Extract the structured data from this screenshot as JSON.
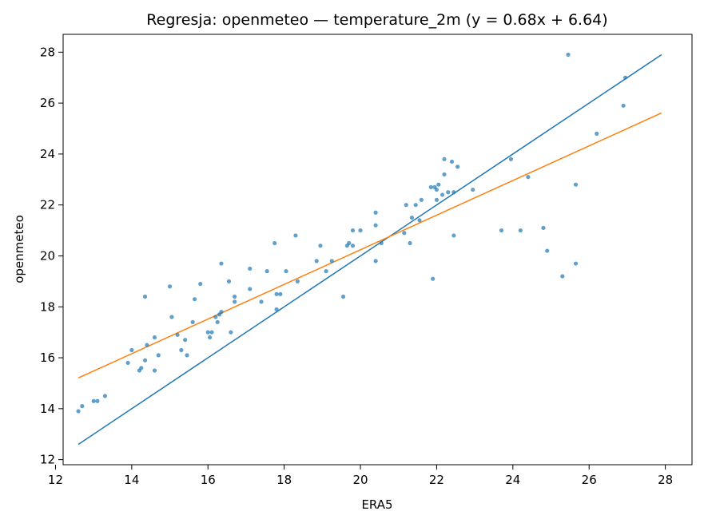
{
  "chart_data": {
    "type": "scatter",
    "title": "Regresja: openmeteo — temperature_2m (y = 0.68x + 6.64)",
    "xlabel": "ERA5",
    "ylabel": "openmeteo",
    "xlim": [
      12.2,
      28.7
    ],
    "ylim": [
      11.8,
      28.7
    ],
    "xticks": [
      12,
      14,
      16,
      18,
      20,
      22,
      24,
      26,
      28
    ],
    "yticks": [
      12,
      14,
      16,
      18,
      20,
      22,
      24,
      26,
      28
    ],
    "grid": false,
    "points_color": "#1f77b4",
    "points": [
      [
        12.6,
        13.9
      ],
      [
        12.7,
        14.1
      ],
      [
        13.0,
        14.3
      ],
      [
        13.1,
        14.3
      ],
      [
        13.3,
        14.5
      ],
      [
        13.9,
        15.8
      ],
      [
        14.0,
        16.3
      ],
      [
        14.2,
        15.5
      ],
      [
        14.25,
        15.6
      ],
      [
        14.35,
        15.9
      ],
      [
        14.35,
        18.4
      ],
      [
        14.4,
        16.5
      ],
      [
        14.6,
        15.5
      ],
      [
        14.6,
        16.8
      ],
      [
        14.7,
        16.1
      ],
      [
        15.0,
        18.8
      ],
      [
        15.05,
        17.6
      ],
      [
        15.2,
        16.9
      ],
      [
        15.3,
        16.3
      ],
      [
        15.4,
        16.7
      ],
      [
        15.45,
        16.1
      ],
      [
        15.6,
        17.4
      ],
      [
        15.65,
        18.3
      ],
      [
        15.8,
        18.9
      ],
      [
        16.0,
        17.0
      ],
      [
        16.05,
        16.8
      ],
      [
        16.1,
        17.0
      ],
      [
        16.2,
        17.6
      ],
      [
        16.25,
        17.4
      ],
      [
        16.3,
        17.7
      ],
      [
        16.35,
        17.8
      ],
      [
        16.35,
        19.7
      ],
      [
        16.55,
        19.0
      ],
      [
        16.6,
        17.0
      ],
      [
        16.7,
        18.2
      ],
      [
        16.7,
        18.4
      ],
      [
        17.1,
        18.7
      ],
      [
        17.1,
        19.5
      ],
      [
        17.4,
        18.2
      ],
      [
        17.55,
        19.4
      ],
      [
        17.75,
        20.5
      ],
      [
        17.8,
        17.9
      ],
      [
        17.8,
        18.5
      ],
      [
        17.9,
        18.5
      ],
      [
        18.05,
        19.4
      ],
      [
        18.3,
        20.8
      ],
      [
        18.35,
        19.0
      ],
      [
        18.85,
        19.8
      ],
      [
        18.95,
        20.4
      ],
      [
        19.1,
        19.4
      ],
      [
        19.25,
        19.8
      ],
      [
        19.55,
        18.4
      ],
      [
        19.65,
        20.4
      ],
      [
        19.7,
        20.5
      ],
      [
        19.8,
        20.4
      ],
      [
        19.8,
        21.0
      ],
      [
        20.0,
        21.0
      ],
      [
        20.4,
        21.2
      ],
      [
        20.4,
        21.7
      ],
      [
        20.4,
        19.8
      ],
      [
        20.55,
        20.5
      ],
      [
        21.15,
        20.9
      ],
      [
        21.2,
        22.0
      ],
      [
        21.3,
        20.5
      ],
      [
        21.35,
        21.5
      ],
      [
        21.45,
        22.0
      ],
      [
        21.55,
        21.4
      ],
      [
        21.6,
        22.2
      ],
      [
        21.85,
        22.7
      ],
      [
        21.9,
        19.1
      ],
      [
        21.95,
        22.7
      ],
      [
        22.0,
        22.2
      ],
      [
        22.0,
        22.6
      ],
      [
        22.05,
        22.8
      ],
      [
        22.15,
        22.4
      ],
      [
        22.2,
        23.8
      ],
      [
        22.2,
        23.2
      ],
      [
        22.3,
        22.5
      ],
      [
        22.4,
        23.7
      ],
      [
        22.45,
        22.5
      ],
      [
        22.45,
        20.8
      ],
      [
        22.55,
        23.5
      ],
      [
        22.95,
        22.6
      ],
      [
        23.7,
        21.0
      ],
      [
        23.95,
        23.8
      ],
      [
        24.2,
        21.0
      ],
      [
        24.4,
        23.1
      ],
      [
        24.8,
        21.1
      ],
      [
        24.9,
        20.2
      ],
      [
        25.3,
        19.2
      ],
      [
        25.45,
        27.9
      ],
      [
        25.65,
        22.8
      ],
      [
        25.65,
        19.7
      ],
      [
        26.2,
        24.8
      ],
      [
        26.9,
        25.9
      ],
      [
        26.95,
        27.0
      ]
    ],
    "series": [
      {
        "type": "line",
        "color": "#1f77b4",
        "x": [
          12.6,
          27.9
        ],
        "y": [
          12.6,
          27.9
        ]
      },
      {
        "type": "line",
        "color": "#ff7f0e",
        "x": [
          12.6,
          27.9
        ],
        "y": [
          15.208,
          25.612
        ]
      }
    ]
  }
}
